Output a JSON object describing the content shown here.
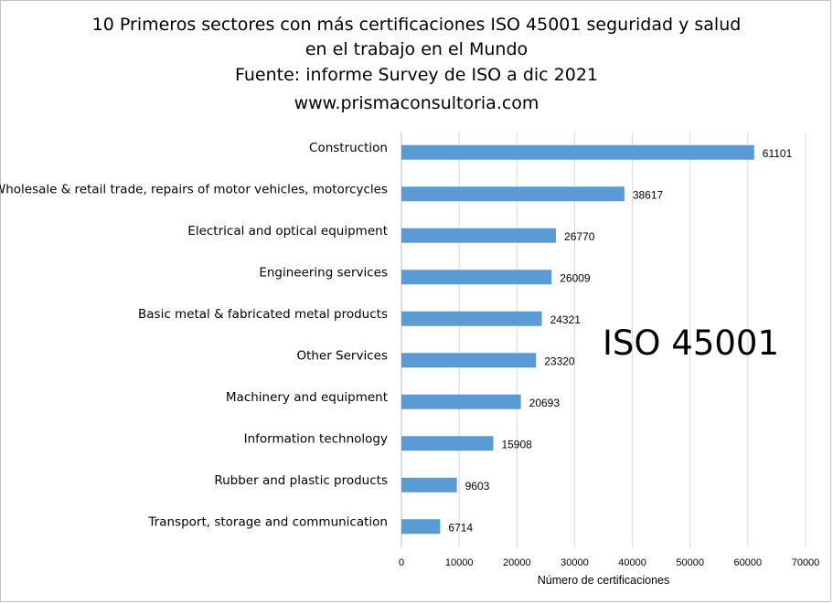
{
  "chart_data": {
    "type": "bar",
    "orientation": "horizontal",
    "title_lines": [
      "10 Primeros sectores con más certificaciones ISO 45001 seguridad y salud",
      "en el  trabajo en el Mundo",
      "Fuente: informe Survey de ISO a dic 2021",
      "www.prismaconsultoria.com"
    ],
    "categories": [
      "Construction",
      "Wholesale & retail trade, repairs of motor vehicles, motorcycles",
      "Electrical and optical equipment",
      "Engineering services",
      "Basic metal & fabricated metal products",
      "Other Services",
      "Machinery and equipment",
      "Information technology",
      "Rubber and plastic products",
      "Transport, storage and communication"
    ],
    "values": [
      61101,
      38617,
      26770,
      26009,
      24321,
      23320,
      20693,
      15908,
      9603,
      6714
    ],
    "xlabel": "Número de certificaciones",
    "ylabel": "",
    "xlim": [
      0,
      70000
    ],
    "xticks": [
      0,
      10000,
      20000,
      30000,
      40000,
      50000,
      60000,
      70000
    ],
    "grid": "vertical",
    "legend": "none",
    "data_labels": true,
    "bar_color": "#5b9bd5",
    "grid_color": "#d9d9d9",
    "annotation": "ISO 45001"
  }
}
